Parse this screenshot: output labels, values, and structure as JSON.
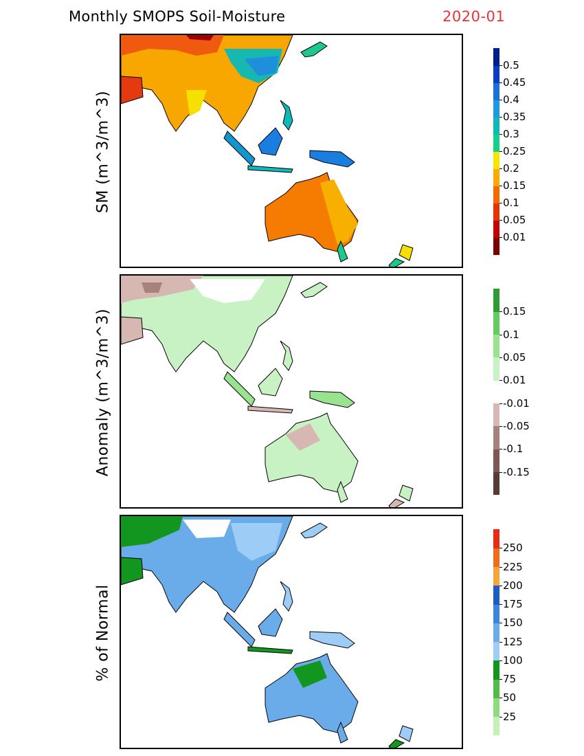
{
  "header": {
    "title": "Monthly SMOPS Soil-Moisture",
    "date": "2020-01"
  },
  "panels": [
    {
      "id": "sm",
      "ylabel": "SM (m^3/m^3)",
      "colorbar": {
        "colors": [
          "#7a0000",
          "#c20000",
          "#e63300",
          "#f46a00",
          "#fbaa00",
          "#f5e500",
          "#12d28a",
          "#10b8b8",
          "#1c9be0",
          "#1a6fd8",
          "#0b3cc8",
          "#001e8c"
        ],
        "labels": [
          "0.01",
          "0.05",
          "0.1",
          "0.15",
          "0.2",
          "0.25",
          "0.3",
          "0.35",
          "0.4",
          "0.45",
          "0.5"
        ]
      }
    },
    {
      "id": "anomaly",
      "ylabel": "Anomaly (m^3/m^3)",
      "colorbar": {
        "colors": [
          "#5a3a36",
          "#7f5852",
          "#a8817c",
          "#d6b7b1",
          "#ffffff",
          "#c9f2c4",
          "#99e28f",
          "#64cc5e",
          "#2e9c33"
        ],
        "labels": [
          "-0.15",
          "-0.1",
          "-0.05",
          "-0.01",
          "0.01",
          "0.05",
          "0.1",
          "0.15"
        ]
      }
    },
    {
      "id": "percent",
      "ylabel": "% of Normal",
      "colorbar": {
        "colors": [
          "#c3f2b6",
          "#8cdb7d",
          "#4fbd47",
          "#12961f",
          "#9dcdf6",
          "#6aabe9",
          "#3a86db",
          "#1b5dc5",
          "#f5a63a",
          "#f06c1a",
          "#e82b14"
        ],
        "labels": [
          "25",
          "50",
          "75",
          "100",
          "125",
          "150",
          "175",
          "200",
          "225",
          "250"
        ]
      }
    }
  ]
}
